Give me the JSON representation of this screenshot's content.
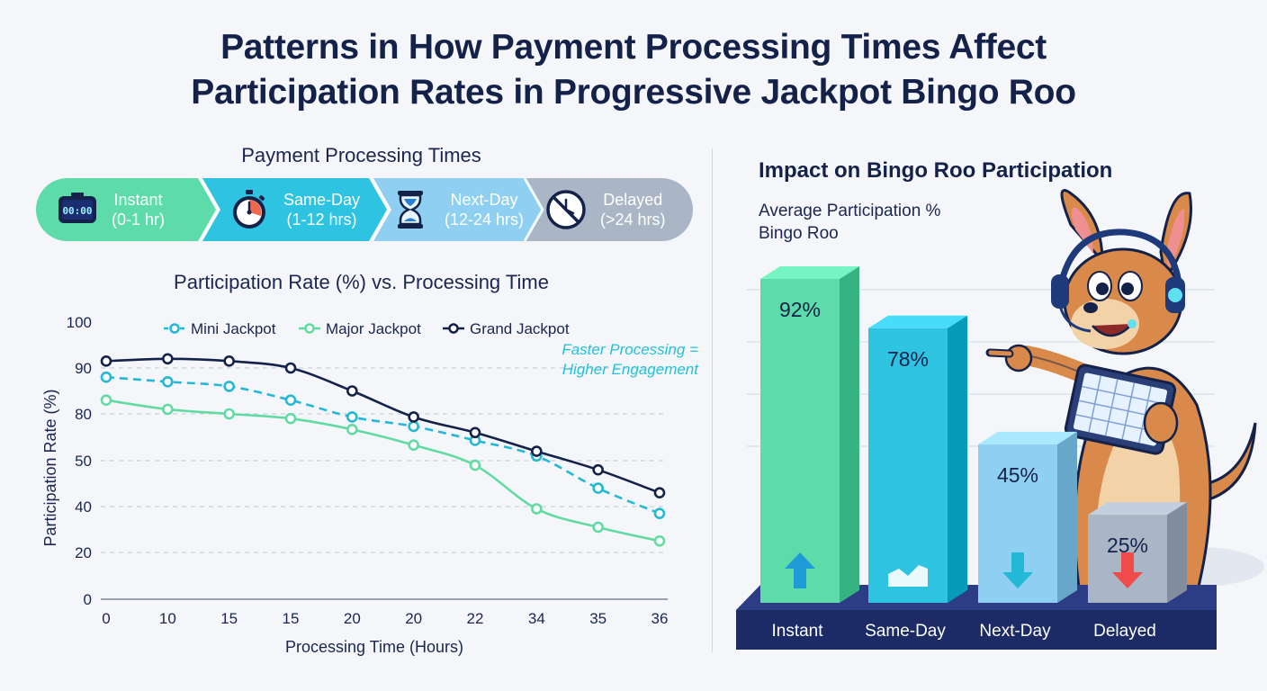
{
  "title": {
    "line1": "Patterns in How Payment Processing Times Affect",
    "line2": "Participation Rates in Progressive Jackpot Bingo Roo"
  },
  "pipeline": {
    "heading": "Payment Processing Times",
    "stages": [
      {
        "name": "Instant",
        "range": "(0-1 hr)",
        "icon": "digital-clock-icon",
        "display": "00:00",
        "color": "#5ddba8"
      },
      {
        "name": "Same-Day",
        "range": "(1-12 hrs)",
        "icon": "stopwatch-icon",
        "color": "#2ec3e0"
      },
      {
        "name": "Next-Day",
        "range": "(12-24 hrs)",
        "icon": "hourglass-icon",
        "color": "#8fd0f2"
      },
      {
        "name": "Delayed",
        "range": "(>24 hrs)",
        "icon": "no-clock-icon",
        "color": "#aab6c6"
      }
    ]
  },
  "colors": {
    "mini": "#25b8d4",
    "major": "#62dba3",
    "grand": "#14224a",
    "bar_base": "#1c2b66"
  },
  "chart_data": [
    {
      "type": "line",
      "title": "Participation Rate (%) vs. Processing Time",
      "xlabel": "Processing Time (Hours)",
      "ylabel": "Participation Rate (%)",
      "categories": [
        "0",
        "10",
        "15",
        "15",
        "20",
        "20",
        "22",
        "34",
        "35",
        "36"
      ],
      "yticks": [
        "100",
        "90",
        "80",
        "50",
        "40",
        "20",
        "0"
      ],
      "ylim": [
        0,
        100
      ],
      "legend_position": "top",
      "grid": "horizontal dashed",
      "annotation": "Faster Processing = Higher Engagement",
      "series": [
        {
          "name": "Mini Jackpot",
          "style": "dashed",
          "values": [
            88,
            87,
            86,
            83,
            78,
            72,
            63,
            53,
            44,
            37
          ]
        },
        {
          "name": "Major Jackpot",
          "style": "solid",
          "values": [
            83,
            81,
            80,
            77,
            70,
            60,
            49,
            39,
            31,
            25
          ]
        },
        {
          "name": "Grand Jackpot",
          "style": "solid",
          "values": [
            91.5,
            92,
            91.5,
            90,
            85,
            78,
            68,
            56,
            48,
            43
          ]
        }
      ]
    },
    {
      "type": "bar",
      "title": "Impact on Bingo Roo Participation",
      "subtitle_line1": "Average Participation %",
      "subtitle_line2": "Bingo Roo",
      "categories": [
        "Instant",
        "Same-Day",
        "Next-Day",
        "Delayed"
      ],
      "values": [
        92,
        78,
        45,
        25
      ],
      "labels": [
        "92%",
        "78%",
        "45%",
        "25%"
      ],
      "bar_icons": [
        "up-arrow-icon",
        "chart-trend-icon",
        "down-arrow-icon",
        "down-arrow-icon"
      ],
      "colors": [
        "#5ddba8",
        "#2ec3e0",
        "#8fd0f2",
        "#aab6c6"
      ],
      "ylim": [
        0,
        100
      ]
    }
  ],
  "mascot": {
    "icon": "kangaroo-mascot-icon"
  }
}
